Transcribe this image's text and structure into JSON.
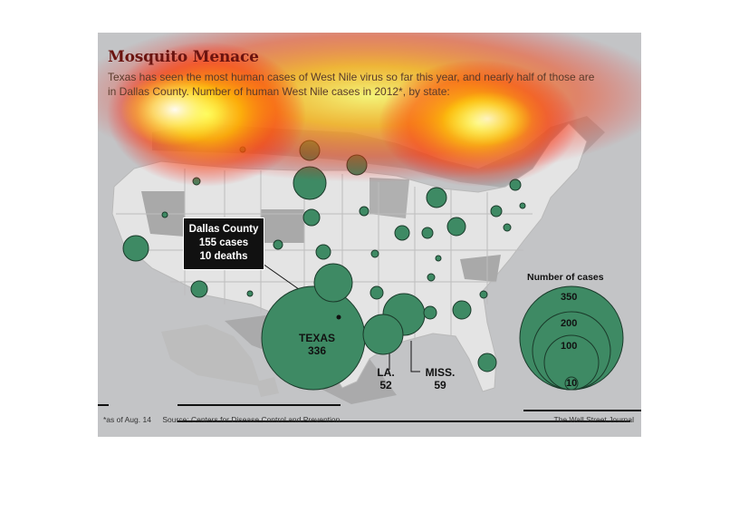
{
  "title": "Mosquito Menace",
  "subtitle": "Texas has seen the most human cases of West Nile virus so far this year, and nearly half of those are in Dallas County. Number of human West Nile cases in 2012*, by state:",
  "callout": {
    "line1": "Dallas County",
    "line2": "155 cases",
    "line3": "10 deaths"
  },
  "labels": {
    "texas": {
      "name": "TEXAS",
      "value": "336"
    },
    "la": {
      "name": "LA.",
      "value": "52"
    },
    "miss": {
      "name": "MISS.",
      "value": "59"
    }
  },
  "legend": {
    "title": "Number of cases",
    "values": [
      350,
      200,
      100,
      10
    ],
    "labels": [
      "350",
      "200",
      "100",
      "10"
    ]
  },
  "footer": {
    "note": "*as of Aug. 14",
    "source": "Source: Centers for Disease Control and Prevention",
    "credit": "The Wall Street Journal"
  },
  "colors": {
    "bubble": "#3e8a64",
    "bubble_stroke": "#1a3a2a",
    "land": "#e4e4e4",
    "land_shaded": "#9a9a9a",
    "title": "#6b1410"
  }
}
